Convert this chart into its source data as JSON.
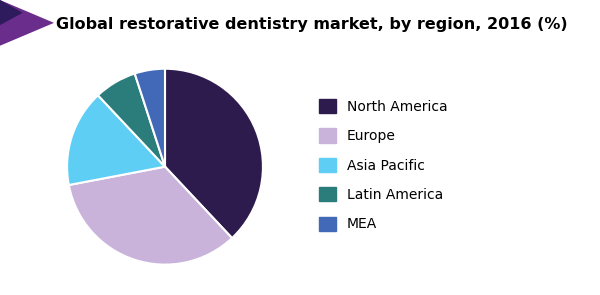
{
  "title": "Global restorative dentistry market, by region, 2016 (%)",
  "labels": [
    "North America",
    "Europe",
    "Asia Pacific",
    "Latin America",
    "MEA"
  ],
  "values": [
    38,
    34,
    16,
    7,
    5
  ],
  "colors": [
    "#2d1b4e",
    "#c9b3db",
    "#5ecef5",
    "#2a7d7b",
    "#4169b8"
  ],
  "startangle": 90,
  "counterclock": false,
  "background_color": "#ffffff",
  "title_fontsize": 11.5,
  "legend_fontsize": 10,
  "header_line_color": "#9b30c0",
  "corner_purple": "#6b2d8b",
  "corner_dark": "#2d1b5e",
  "wedge_edge_color": "#ffffff",
  "wedge_linewidth": 1.5
}
